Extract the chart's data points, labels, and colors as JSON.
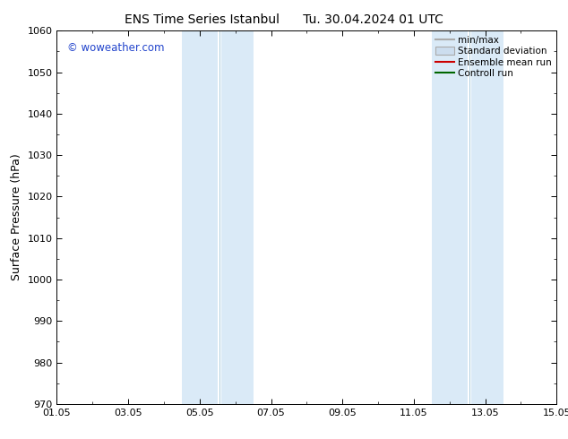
{
  "title_left": "ENS Time Series Istanbul",
  "title_right": "Tu. 30.04.2024 01 UTC",
  "ylabel": "Surface Pressure (hPa)",
  "ylim": [
    970,
    1060
  ],
  "yticks": [
    970,
    980,
    990,
    1000,
    1010,
    1020,
    1030,
    1040,
    1050,
    1060
  ],
  "xlim_start": 0,
  "xlim_end": 14,
  "xtick_positions": [
    0,
    2,
    4,
    6,
    8,
    10,
    12,
    14
  ],
  "xtick_labels": [
    "01.05",
    "03.05",
    "05.05",
    "07.05",
    "09.05",
    "11.05",
    "13.05",
    "15.05"
  ],
  "blue_bands": [
    {
      "x_start": 3.5,
      "x_end": 4.5
    },
    {
      "x_start": 4.6,
      "x_end": 5.5
    },
    {
      "x_start": 10.5,
      "x_end": 11.5
    },
    {
      "x_start": 11.6,
      "x_end": 12.5
    }
  ],
  "band_color": "#daeaf7",
  "band_alpha": 1.0,
  "watermark": "© woweather.com",
  "watermark_color": "#2244cc",
  "legend_entries": [
    {
      "label": "min/max",
      "type": "line",
      "color": "#aaaaaa"
    },
    {
      "label": "Standard deviation",
      "type": "box",
      "facecolor": "#ccddee",
      "edgecolor": "#aaaaaa"
    },
    {
      "label": "Ensemble mean run",
      "type": "line",
      "color": "#cc0000"
    },
    {
      "label": "Controll run",
      "type": "line",
      "color": "#006600"
    }
  ],
  "bg_color": "#ffffff",
  "tick_fontsize": 8,
  "label_fontsize": 9,
  "title_fontsize": 10,
  "band_line_color": "#aaccdd"
}
